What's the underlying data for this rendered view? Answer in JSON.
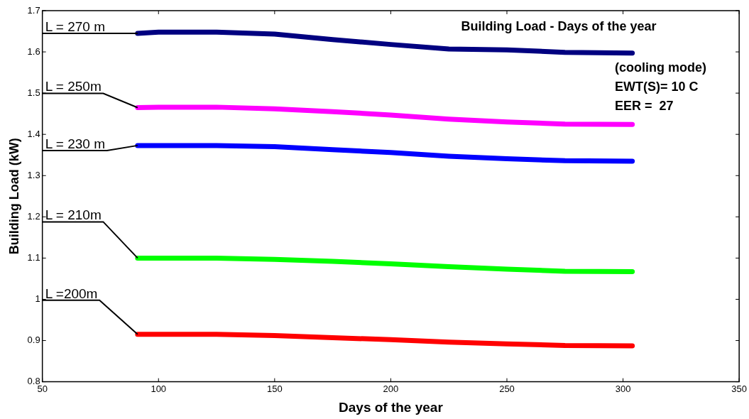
{
  "chart_data": {
    "type": "line",
    "title": "Building Load - Days of the year",
    "xlabel": "Days of the year",
    "ylabel": "Building Load (kW)",
    "x": [
      91,
      100,
      125,
      150,
      175,
      200,
      225,
      250,
      275,
      304
    ],
    "series": [
      {
        "name": "L = 270 m",
        "color": "#000080",
        "values": [
          1.645,
          1.648,
          1.648,
          1.643,
          1.63,
          1.618,
          1.607,
          1.605,
          1.599,
          1.597
        ]
      },
      {
        "name": "L = 250m",
        "color": "#ff00ff",
        "values": [
          1.465,
          1.466,
          1.466,
          1.462,
          1.455,
          1.447,
          1.437,
          1.43,
          1.425,
          1.424
        ]
      },
      {
        "name": "L = 230 m",
        "color": "#0000ff",
        "values": [
          1.373,
          1.373,
          1.373,
          1.37,
          1.363,
          1.356,
          1.347,
          1.341,
          1.336,
          1.335
        ]
      },
      {
        "name": "L = 210m",
        "color": "#00ff00",
        "values": [
          1.1,
          1.1,
          1.1,
          1.097,
          1.092,
          1.086,
          1.079,
          1.073,
          1.068,
          1.067
        ]
      },
      {
        "name": "L =200m",
        "color": "#ff0000",
        "values": [
          0.915,
          0.915,
          0.915,
          0.912,
          0.907,
          0.902,
          0.896,
          0.892,
          0.888,
          0.887
        ]
      }
    ],
    "annotations": [
      "(cooling mode)",
      "EWT(S)= 10 C",
      "EER =  27"
    ],
    "xlim": [
      50,
      350
    ],
    "xticks": [
      50,
      100,
      150,
      200,
      250,
      300,
      350
    ],
    "ylim": [
      0.8,
      1.7
    ],
    "yticks": [
      0.8,
      0.9,
      1,
      1.1,
      1.2,
      1.3,
      1.4,
      1.5,
      1.6,
      1.7
    ],
    "grid": false,
    "legend": false,
    "line_style": "solid"
  }
}
